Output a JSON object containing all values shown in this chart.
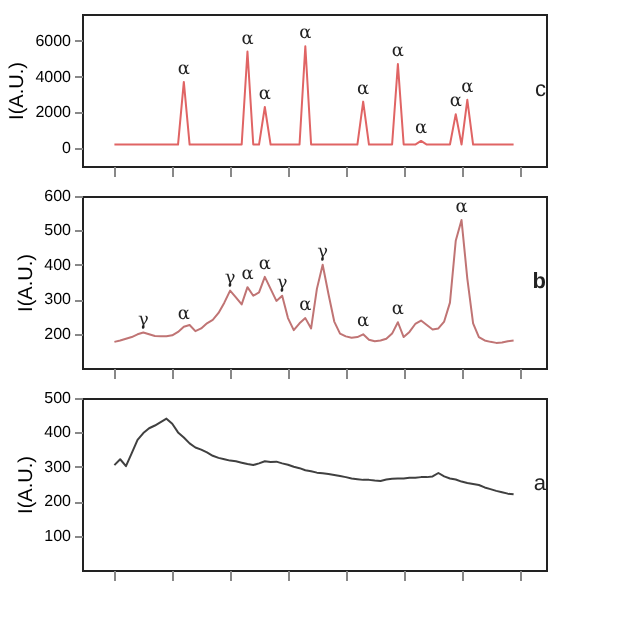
{
  "chart_data": [
    {
      "type": "line",
      "ylabel": "I(A.U.)",
      "ylim": [
        -1000,
        7500
      ],
      "yticks": [
        0,
        2000,
        4000,
        6000
      ],
      "tick_labels": "y",
      "annotations": [
        "c"
      ],
      "categories": [
        null,
        null,
        null,
        null,
        null,
        null,
        null,
        null,
        null,
        null,
        null,
        null,
        null,
        null,
        null,
        null,
        null,
        null,
        null,
        null,
        null,
        null,
        null,
        null,
        null,
        null,
        null,
        null,
        null,
        null,
        null,
        null,
        null,
        null,
        null,
        null,
        null,
        null,
        null,
        null,
        null,
        null,
        null,
        null,
        null,
        null,
        null,
        null,
        null,
        null,
        null,
        null,
        null,
        null,
        null,
        null,
        null,
        null,
        null,
        null,
        null,
        null,
        null,
        null,
        null,
        null,
        null,
        null,
        null,
        null
      ],
      "series": [
        {
          "color": "#e06464",
          "values": [
            200,
            200,
            200,
            200,
            200,
            200,
            200,
            200,
            200,
            200,
            200,
            200,
            3700,
            200,
            200,
            200,
            200,
            200,
            200,
            200,
            200,
            200,
            200,
            5400,
            200,
            200,
            2300,
            200,
            200,
            200,
            200,
            200,
            200,
            5700,
            200,
            200,
            200,
            200,
            200,
            200,
            200,
            200,
            200,
            2600,
            200,
            200,
            200,
            200,
            200,
            4700,
            200,
            200,
            200,
            400,
            200,
            200,
            200,
            200,
            200,
            1900,
            200,
            2700,
            200,
            200,
            200,
            200,
            200,
            200,
            200,
            200
          ],
          "value_labels": [
            null,
            null,
            null,
            null,
            null,
            null,
            null,
            null,
            null,
            null,
            null,
            null,
            "α",
            null,
            null,
            null,
            null,
            null,
            null,
            null,
            null,
            null,
            null,
            "α",
            null,
            null,
            "α",
            null,
            null,
            null,
            null,
            null,
            null,
            "α",
            null,
            null,
            null,
            null,
            null,
            null,
            null,
            null,
            null,
            "α",
            null,
            null,
            null,
            null,
            null,
            "α",
            null,
            null,
            null,
            "α",
            null,
            null,
            null,
            null,
            null,
            "α",
            null,
            "α",
            null,
            null,
            null,
            null,
            null,
            null,
            null,
            null
          ]
        }
      ]
    },
    {
      "type": "line",
      "ylabel": "I(A.U.)",
      "ylim": [
        100,
        600
      ],
      "yticks": [
        200,
        300,
        400,
        500,
        600
      ],
      "tick_labels": "y",
      "annotations": [
        "b"
      ],
      "categories": [
        null,
        null,
        null,
        null,
        null,
        null,
        null,
        null,
        null,
        null,
        null,
        null,
        null,
        null,
        null,
        null,
        null,
        null,
        null,
        null,
        null,
        null,
        null,
        null,
        null,
        null,
        null,
        null,
        null,
        null,
        null,
        null,
        null,
        null,
        null,
        null,
        null,
        null,
        null,
        null,
        null,
        null,
        null,
        null,
        null,
        null,
        null,
        null,
        null,
        null,
        null,
        null,
        null,
        null,
        null,
        null,
        null,
        null,
        null,
        null,
        null,
        null,
        null,
        null,
        null,
        null,
        null,
        null,
        null,
        null
      ],
      "series": [
        {
          "color": "#c07474",
          "values": [
            176,
            180,
            185,
            190,
            198,
            203,
            198,
            193,
            192,
            192,
            195,
            205,
            220,
            225,
            207,
            215,
            230,
            240,
            260,
            290,
            325,
            305,
            285,
            335,
            310,
            320,
            365,
            330,
            295,
            310,
            245,
            210,
            230,
            245,
            215,
            330,
            400,
            315,
            235,
            200,
            192,
            188,
            190,
            198,
            182,
            178,
            180,
            185,
            200,
            233,
            190,
            205,
            228,
            238,
            225,
            212,
            215,
            235,
            290,
            470,
            530,
            360,
            230,
            190,
            180,
            176,
            173,
            174,
            178,
            180
          ],
          "value_labels": [
            null,
            null,
            null,
            null,
            null,
            "γ",
            null,
            null,
            null,
            null,
            null,
            null,
            "α",
            null,
            null,
            null,
            null,
            null,
            null,
            null,
            "γ",
            null,
            null,
            "α",
            null,
            null,
            "α",
            null,
            null,
            "γ",
            null,
            null,
            null,
            "α",
            null,
            null,
            "γ",
            null,
            null,
            null,
            null,
            null,
            null,
            "α",
            null,
            null,
            null,
            null,
            null,
            "α",
            null,
            null,
            null,
            null,
            null,
            null,
            null,
            null,
            null,
            null,
            "α",
            null,
            null,
            null,
            null,
            null,
            null,
            null,
            null,
            null
          ]
        }
      ]
    },
    {
      "type": "line",
      "ylabel": "I(A.U.)",
      "ylim": [
        0,
        500
      ],
      "yticks": [
        100,
        200,
        300,
        400,
        500
      ],
      "tick_labels": "y",
      "annotations": [
        "a"
      ],
      "categories": [
        null,
        null,
        null,
        null,
        null,
        null,
        null,
        null,
        null,
        null,
        null,
        null,
        null,
        null,
        null,
        null,
        null,
        null,
        null,
        null,
        null,
        null,
        null,
        null,
        null,
        null,
        null,
        null,
        null,
        null,
        null,
        null,
        null,
        null,
        null,
        null,
        null,
        null,
        null,
        null,
        null,
        null,
        null,
        null,
        null,
        null,
        null,
        null,
        null,
        null,
        null,
        null,
        null,
        null,
        null,
        null,
        null,
        null,
        null,
        null,
        null,
        null,
        null,
        null,
        null,
        null,
        null,
        null,
        null,
        null
      ],
      "series": [
        {
          "color": "#404040",
          "values": [
            305,
            322,
            302,
            340,
            378,
            398,
            412,
            420,
            430,
            440,
            425,
            400,
            385,
            368,
            356,
            350,
            342,
            332,
            326,
            322,
            318,
            316,
            312,
            308,
            305,
            310,
            316,
            314,
            315,
            310,
            306,
            300,
            296,
            290,
            287,
            283,
            281,
            279,
            276,
            273,
            270,
            266,
            264,
            262,
            262,
            260,
            259,
            263,
            265,
            266,
            266,
            268,
            268,
            270,
            270,
            272,
            282,
            272,
            266,
            263,
            257,
            253,
            250,
            247,
            240,
            235,
            230,
            226,
            222,
            220
          ]
        }
      ]
    }
  ]
}
